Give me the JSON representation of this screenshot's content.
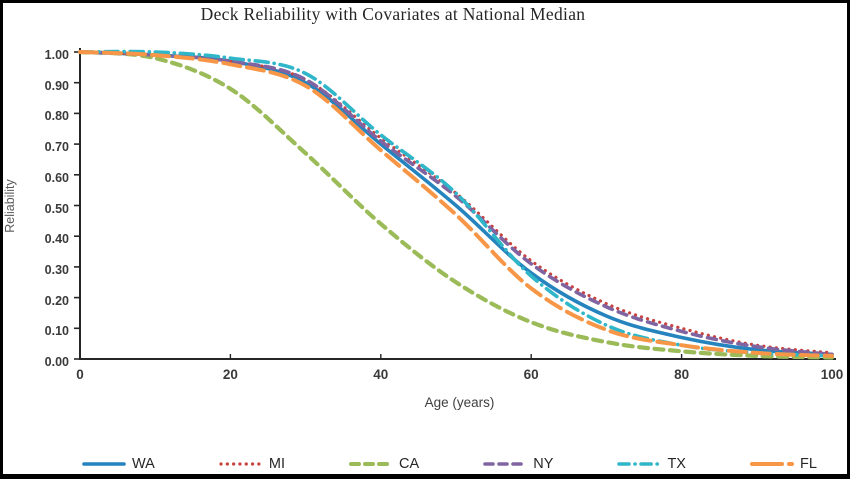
{
  "chart_data": {
    "type": "line",
    "title": "Deck Reliability with Covariates at National Median",
    "xlabel": "Age (years)",
    "ylabel": "Reliability",
    "xlim": [
      0,
      100
    ],
    "ylim": [
      0,
      1
    ],
    "grid": false,
    "legend_position": "bottom",
    "x_ticks": [
      0,
      20,
      40,
      60,
      80,
      100
    ],
    "x_tick_labels": [
      "0",
      "20",
      "40",
      "60",
      "80",
      "100"
    ],
    "y_ticks": [
      0,
      0.1,
      0.2,
      0.3,
      0.4,
      0.5,
      0.6,
      0.7,
      0.8,
      0.9,
      1.0
    ],
    "y_tick_labels": [
      "0.00",
      "0.10",
      "0.20",
      "0.30",
      "0.40",
      "0.50",
      "0.60",
      "0.70",
      "0.80",
      "0.90",
      "1.00"
    ],
    "x": [
      0,
      10,
      20,
      30,
      40,
      50,
      60,
      70,
      80,
      90,
      100
    ],
    "series": [
      {
        "name": "WA",
        "color": "#2583be",
        "dash": "solid",
        "width": 3.6,
        "values": [
          1.0,
          0.99,
          0.97,
          0.9,
          0.7,
          0.5,
          0.28,
          0.14,
          0.07,
          0.03,
          0.015
        ]
      },
      {
        "name": "MI",
        "color": "#c8423f",
        "dash": "dotted",
        "width": 3.2,
        "values": [
          1.0,
          0.99,
          0.97,
          0.91,
          0.72,
          0.54,
          0.32,
          0.18,
          0.1,
          0.045,
          0.02
        ]
      },
      {
        "name": "CA",
        "color": "#9bbb59",
        "dash": "dashed",
        "width": 4.2,
        "values": [
          1.0,
          0.98,
          0.88,
          0.67,
          0.44,
          0.25,
          0.12,
          0.055,
          0.025,
          0.01,
          0.005
        ]
      },
      {
        "name": "NY",
        "color": "#8064a2",
        "dash": "dashed",
        "width": 3.6,
        "values": [
          1.0,
          0.99,
          0.97,
          0.91,
          0.71,
          0.53,
          0.31,
          0.17,
          0.09,
          0.04,
          0.015
        ]
      },
      {
        "name": "TX",
        "color": "#2fb6c9",
        "dash": "dashdot",
        "width": 3.6,
        "values": [
          1.0,
          1.0,
          0.98,
          0.93,
          0.73,
          0.54,
          0.27,
          0.11,
          0.045,
          0.02,
          0.01
        ]
      },
      {
        "name": "FL",
        "color": "#f79646",
        "dash": "longdash",
        "width": 4.0,
        "values": [
          1.0,
          0.99,
          0.96,
          0.89,
          0.68,
          0.47,
          0.23,
          0.095,
          0.045,
          0.02,
          0.01
        ]
      }
    ]
  }
}
